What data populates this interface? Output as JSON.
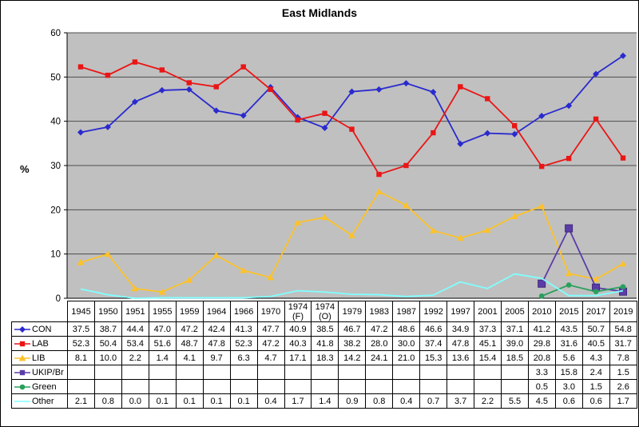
{
  "title": "East Midlands",
  "y_axis": {
    "label": "%",
    "ticks": [
      "0",
      "10",
      "20",
      "30",
      "40",
      "50",
      "60"
    ]
  },
  "chart_data": {
    "type": "line",
    "title": "East Midlands",
    "xlabel": "",
    "ylabel": "%",
    "ylim": [
      0,
      60
    ],
    "grid": true,
    "plot_background": "#c0c0c0",
    "gridline_color": "#4d4d4d",
    "legend_position": "table-left",
    "categories": [
      "1945",
      "1950",
      "1951",
      "1955",
      "1959",
      "1964",
      "1966",
      "1970",
      "1974 (F)",
      "1974 (O)",
      "1979",
      "1983",
      "1987",
      "1992",
      "1997",
      "2001",
      "2005",
      "2010",
      "2015",
      "2017",
      "2019"
    ],
    "series": [
      {
        "name": "CON",
        "color": "#2a2ace",
        "marker": "diamond",
        "values": [
          37.5,
          38.7,
          44.4,
          47.0,
          47.2,
          42.4,
          41.3,
          47.7,
          40.9,
          38.5,
          46.7,
          47.2,
          48.6,
          46.6,
          34.9,
          37.3,
          37.1,
          41.2,
          43.5,
          50.7,
          54.8
        ]
      },
      {
        "name": "LAB",
        "color": "#ea1515",
        "marker": "square",
        "values": [
          52.3,
          50.4,
          53.4,
          51.6,
          48.7,
          47.8,
          52.3,
          47.2,
          40.3,
          41.8,
          38.2,
          28.0,
          30.0,
          37.4,
          47.8,
          45.1,
          39.0,
          29.8,
          31.6,
          40.5,
          31.7
        ]
      },
      {
        "name": "LIB",
        "color": "#fcc22a",
        "marker": "triangle",
        "values": [
          8.1,
          10.0,
          2.2,
          1.4,
          4.1,
          9.7,
          6.3,
          4.7,
          17.1,
          18.3,
          14.2,
          24.1,
          21.0,
          15.3,
          13.6,
          15.4,
          18.5,
          20.8,
          5.6,
          4.3,
          7.8
        ]
      },
      {
        "name": "UKIP/Br",
        "color": "#5c3ca8",
        "marker": "square-large",
        "values": [
          null,
          null,
          null,
          null,
          null,
          null,
          null,
          null,
          null,
          null,
          null,
          null,
          null,
          null,
          null,
          null,
          null,
          3.3,
          15.8,
          2.4,
          1.5
        ]
      },
      {
        "name": "Green",
        "color": "#28a05c",
        "marker": "circle",
        "values": [
          null,
          null,
          null,
          null,
          null,
          null,
          null,
          null,
          null,
          null,
          null,
          null,
          null,
          null,
          null,
          null,
          null,
          0.5,
          3.0,
          1.5,
          2.6
        ]
      },
      {
        "name": "Other",
        "color": "#80ffff",
        "marker": "none",
        "values": [
          2.1,
          0.8,
          0.0,
          0.1,
          0.1,
          0.1,
          0.1,
          0.4,
          1.7,
          1.4,
          0.9,
          0.8,
          0.4,
          0.7,
          3.7,
          2.2,
          5.5,
          4.5,
          0.6,
          0.6,
          1.7
        ]
      }
    ]
  }
}
